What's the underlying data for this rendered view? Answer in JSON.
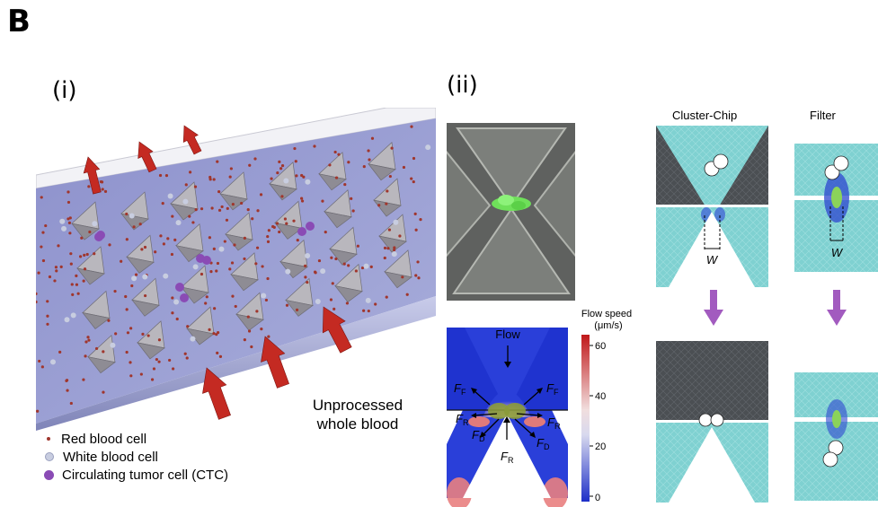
{
  "panel_label": "B",
  "sub_i": {
    "label": "(i)",
    "annotation": [
      "Unprocessed",
      "whole blood"
    ],
    "legend": [
      {
        "label": "Red blood cell",
        "color": "#a0362d"
      },
      {
        "label": "White blood cell",
        "color": "#c8cde0"
      },
      {
        "label": "Circulating tumor cell (CTC)",
        "color": "#8a4bb5"
      }
    ]
  },
  "sub_ii": {
    "label": "(ii)",
    "flow_label": "Flow",
    "colorbar": {
      "title_line1": "Flow speed",
      "title_line2": "(μm/s)",
      "ticks": [
        "60",
        "40",
        "20",
        "0"
      ]
    },
    "forces": {
      "ff_left": "F",
      "ff_left_sub": "F",
      "ff_right": "F",
      "ff_right_sub": "F",
      "fr_left": "F",
      "fr_left_sub": "R",
      "fd_left": "F",
      "fd_left_sub": "D",
      "fr_right": "F",
      "fr_right_sub": "R",
      "fd_right": "F",
      "fd_right_sub": "D",
      "fr_bottom": "F",
      "fr_bottom_sub": "R"
    },
    "cluster_chip_heading": "Cluster-Chip",
    "filter_heading": "Filter",
    "width_label": "W"
  }
}
